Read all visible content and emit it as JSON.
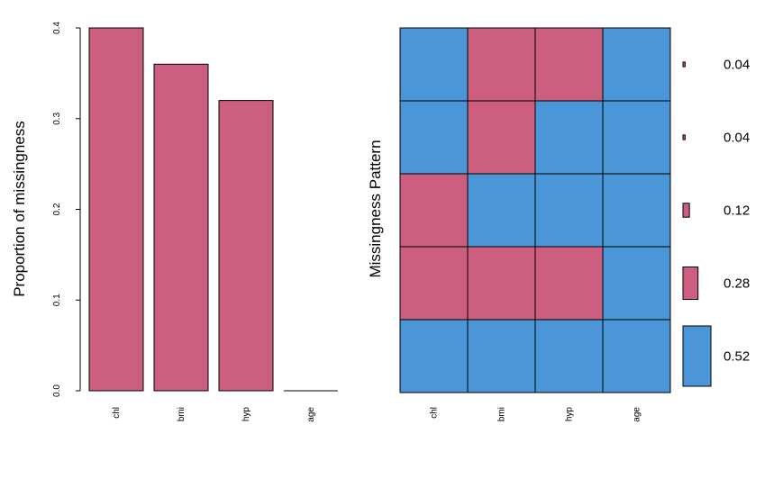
{
  "chart_data": [
    {
      "type": "bar",
      "categories": [
        "chl",
        "bmi",
        "hyp",
        "age"
      ],
      "values": [
        0.4,
        0.36,
        0.32,
        0.0
      ],
      "ylabel": "Proportion of missingness",
      "ylim": [
        0,
        0.4
      ],
      "yticks": [
        "0.0",
        "0.1",
        "0.2",
        "0.3",
        "0.4"
      ],
      "bar_color": "#cc5e80",
      "grid": false
    },
    {
      "type": "heatmap",
      "columns": [
        "chl",
        "bmi",
        "hyp",
        "age"
      ],
      "ylabel": "Missingness Pattern",
      "missing_color": "#cc5e80",
      "observed_color": "#4a96d6",
      "patterns": [
        {
          "missing": [
            false,
            true,
            true,
            false
          ],
          "proportion": 0.04,
          "label": "0.04"
        },
        {
          "missing": [
            false,
            true,
            false,
            false
          ],
          "proportion": 0.04,
          "label": "0.04"
        },
        {
          "missing": [
            true,
            false,
            false,
            false
          ],
          "proportion": 0.12,
          "label": "0.12"
        },
        {
          "missing": [
            true,
            true,
            true,
            false
          ],
          "proportion": 0.28,
          "label": "0.28"
        },
        {
          "missing": [
            false,
            false,
            false,
            false
          ],
          "proportion": 0.52,
          "label": "0.52"
        }
      ]
    }
  ]
}
